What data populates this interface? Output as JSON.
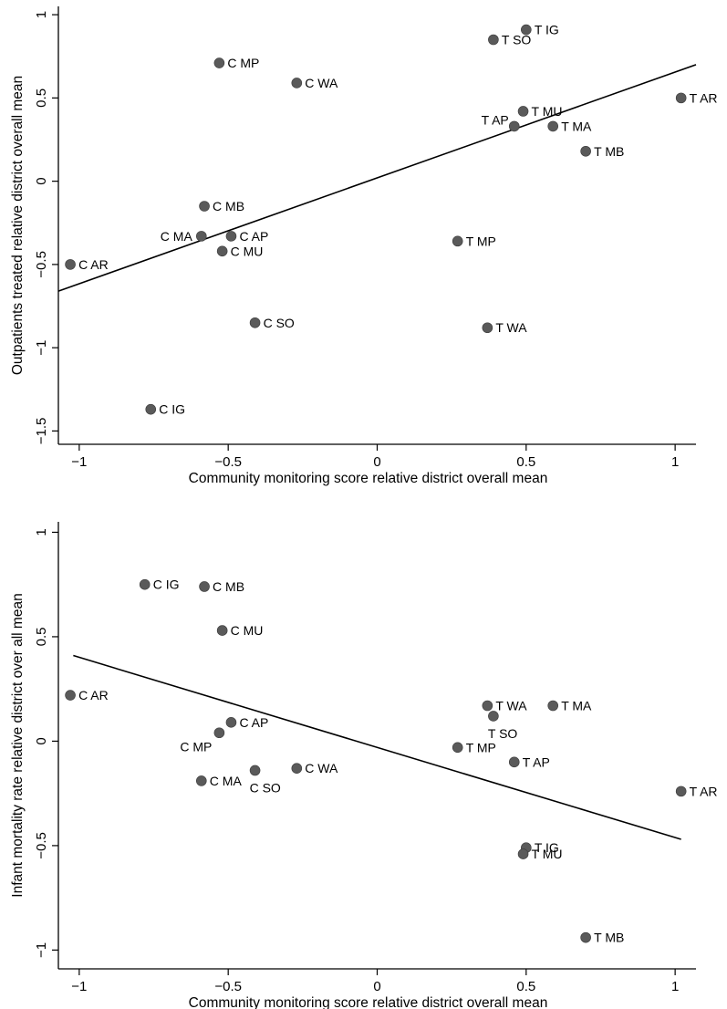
{
  "chart_data": [
    {
      "type": "scatter",
      "xlabel": "Community monitoring score relative district overall mean",
      "ylabel": "Outpatients treated relative district overall mean",
      "xlim": [
        -1.07,
        1.07
      ],
      "ylim": [
        -1.58,
        1.05
      ],
      "xticks": [
        -1,
        -0.5,
        0,
        0.5,
        1
      ],
      "xtick_labels": [
        "−1",
        "−0.5",
        "0",
        "0.5",
        "1"
      ],
      "yticks": [
        1,
        0.5,
        0,
        -0.5,
        -1,
        -1.5
      ],
      "ytick_labels": [
        "1",
        "0.5",
        "0",
        "−0.5",
        "−1",
        "−1.5"
      ],
      "points": [
        {
          "label": "C AR",
          "x": -1.03,
          "y": -0.5,
          "pos": "right"
        },
        {
          "label": "C IG",
          "x": -0.76,
          "y": -1.37,
          "pos": "right"
        },
        {
          "label": "C MA",
          "x": -0.59,
          "y": -0.33,
          "pos": "left"
        },
        {
          "label": "C MB",
          "x": -0.58,
          "y": -0.15,
          "pos": "right"
        },
        {
          "label": "C MP",
          "x": -0.53,
          "y": 0.71,
          "pos": "right"
        },
        {
          "label": "C MU",
          "x": -0.52,
          "y": -0.42,
          "pos": "right"
        },
        {
          "label": "C AP",
          "x": -0.49,
          "y": -0.33,
          "pos": "right"
        },
        {
          "label": "C SO",
          "x": -0.41,
          "y": -0.85,
          "pos": "right"
        },
        {
          "label": "C WA",
          "x": -0.27,
          "y": 0.59,
          "pos": "right"
        },
        {
          "label": "T MP",
          "x": 0.27,
          "y": -0.36,
          "pos": "right"
        },
        {
          "label": "T WA",
          "x": 0.37,
          "y": -0.88,
          "pos": "right"
        },
        {
          "label": "T SO",
          "x": 0.39,
          "y": 0.85,
          "pos": "right"
        },
        {
          "label": "T AP",
          "x": 0.46,
          "y": 0.33,
          "pos": "left-up"
        },
        {
          "label": "T MU",
          "x": 0.49,
          "y": 0.42,
          "pos": "right"
        },
        {
          "label": "T IG",
          "x": 0.5,
          "y": 0.91,
          "pos": "right"
        },
        {
          "label": "T MA",
          "x": 0.59,
          "y": 0.33,
          "pos": "right"
        },
        {
          "label": "T MB",
          "x": 0.7,
          "y": 0.18,
          "pos": "right"
        },
        {
          "label": "T AR",
          "x": 1.02,
          "y": 0.5,
          "pos": "right"
        }
      ],
      "fit_line": {
        "x": [
          -1.07,
          1.07
        ],
        "y": [
          -0.66,
          0.7
        ]
      }
    },
    {
      "type": "scatter",
      "xlabel": "Community monitoring score relative district overall mean",
      "ylabel": "Infant mortality rate relative district over all mean",
      "xlim": [
        -1.07,
        1.07
      ],
      "ylim": [
        -1.09,
        1.05
      ],
      "xticks": [
        -1,
        -0.5,
        0,
        0.5,
        1
      ],
      "xtick_labels": [
        "−1",
        "−0.5",
        "0",
        "0.5",
        "1"
      ],
      "yticks": [
        1,
        0.5,
        0,
        -0.5,
        -1
      ],
      "ytick_labels": [
        "1",
        "0.5",
        "0",
        "−0.5",
        "−1"
      ],
      "points": [
        {
          "label": "C IG",
          "x": -0.78,
          "y": 0.75,
          "pos": "right"
        },
        {
          "label": "C MB",
          "x": -0.58,
          "y": 0.74,
          "pos": "right"
        },
        {
          "label": "C MU",
          "x": -0.52,
          "y": 0.53,
          "pos": "right"
        },
        {
          "label": "C AR",
          "x": -1.03,
          "y": 0.22,
          "pos": "right"
        },
        {
          "label": "C AP",
          "x": -0.49,
          "y": 0.09,
          "pos": "right"
        },
        {
          "label": "C MP",
          "x": -0.53,
          "y": 0.04,
          "pos": "left-down"
        },
        {
          "label": "C MA",
          "x": -0.59,
          "y": -0.19,
          "pos": "right"
        },
        {
          "label": "C SO",
          "x": -0.41,
          "y": -0.14,
          "pos": "below"
        },
        {
          "label": "C WA",
          "x": -0.27,
          "y": -0.13,
          "pos": "right"
        },
        {
          "label": "T WA",
          "x": 0.37,
          "y": 0.17,
          "pos": "right"
        },
        {
          "label": "T SO",
          "x": 0.39,
          "y": 0.12,
          "pos": "below"
        },
        {
          "label": "T MA",
          "x": 0.59,
          "y": 0.17,
          "pos": "right"
        },
        {
          "label": "T MP",
          "x": 0.27,
          "y": -0.03,
          "pos": "right"
        },
        {
          "label": "T AP",
          "x": 0.46,
          "y": -0.1,
          "pos": "right"
        },
        {
          "label": "T AR",
          "x": 1.02,
          "y": -0.24,
          "pos": "right"
        },
        {
          "label": "T IG",
          "x": 0.5,
          "y": -0.51,
          "pos": "right"
        },
        {
          "label": "T MU",
          "x": 0.49,
          "y": -0.54,
          "pos": "right"
        },
        {
          "label": "T MB",
          "x": 0.7,
          "y": -0.94,
          "pos": "right"
        }
      ],
      "fit_line": {
        "x": [
          -1.02,
          1.02
        ],
        "y": [
          0.41,
          -0.47
        ]
      }
    }
  ]
}
